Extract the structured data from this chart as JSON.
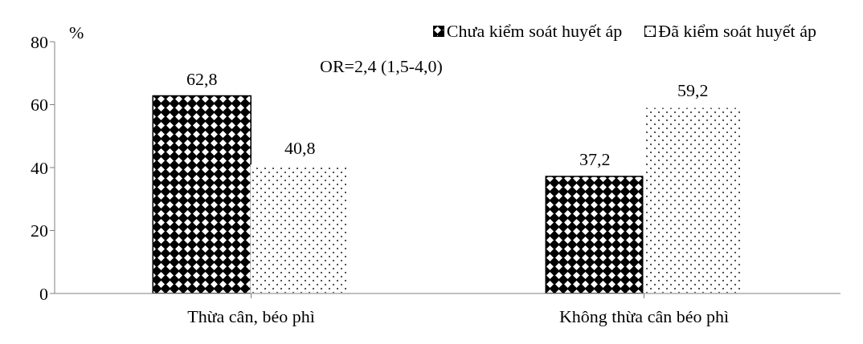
{
  "chart_data": {
    "type": "bar",
    "ylabel": "%",
    "categories": [
      "Thừa cân, béo phì",
      "Không thừa cân béo phì"
    ],
    "series": [
      {
        "name": "Chưa kiểm soát huyết áp",
        "color": "#000000",
        "values": [
          62.8,
          37.2
        ],
        "value_labels": [
          "62,8",
          "37,2"
        ]
      },
      {
        "name": "Đã kiểm soát huyết áp",
        "color": "#ffffff",
        "values": [
          40.8,
          59.2
        ],
        "value_labels": [
          "40,8",
          "59,2"
        ]
      }
    ],
    "annotations": [
      "OR=2,4 (1,5-4,0)"
    ],
    "ylim": [
      0,
      80
    ],
    "yticks": [
      0,
      20,
      40,
      60,
      80
    ],
    "grid": false,
    "legend": "top right"
  }
}
